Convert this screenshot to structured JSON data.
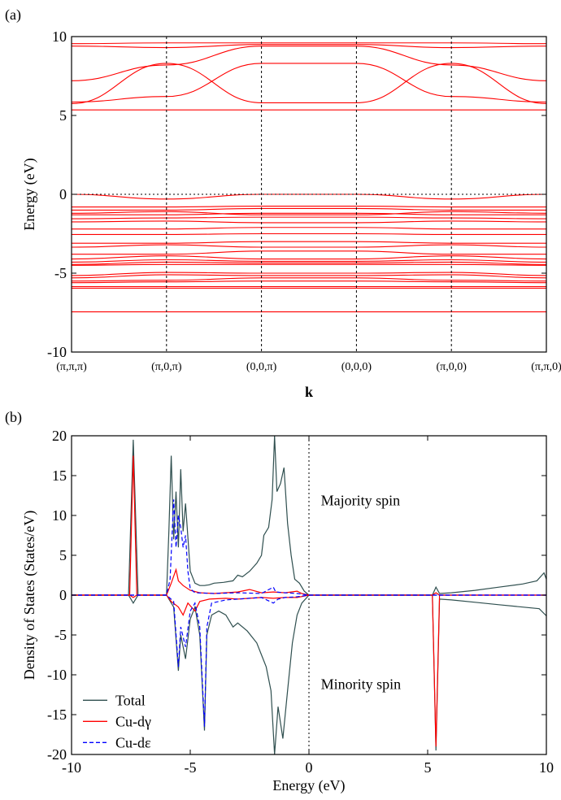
{
  "chart_data": [
    {
      "panel_label": "(a)",
      "type": "line",
      "xlabel": "k",
      "ylabel": "Energy (eV)",
      "ylim": [
        -10,
        10
      ],
      "yticks": [
        -10,
        -5,
        0,
        5,
        10
      ],
      "k_points": [
        "(π,π,π)",
        "(π,0,π)",
        "(0,0,π)",
        "(0,0,0)",
        "(π,0,0)",
        "(π,π,0)"
      ],
      "fermi_level": 0,
      "band_color": "#ff0000",
      "bands": [
        {
          "values": [
            -7.45,
            -7.45,
            -7.45,
            -7.45,
            -7.45,
            -7.45
          ]
        },
        {
          "values": [
            -5.95,
            -5.95,
            -5.95,
            -5.95,
            -5.95,
            -5.95
          ]
        },
        {
          "values": [
            -5.85,
            -5.85,
            -5.85,
            -5.85,
            -5.85,
            -5.85
          ]
        },
        {
          "values": [
            -5.6,
            -5.55,
            -5.5,
            -5.5,
            -5.55,
            -5.6
          ]
        },
        {
          "values": [
            -5.5,
            -5.45,
            -5.3,
            -5.3,
            -5.45,
            -5.5
          ]
        },
        {
          "values": [
            -5.3,
            -5.1,
            -5.15,
            -5.15,
            -5.1,
            -5.3
          ]
        },
        {
          "values": [
            -5.15,
            -4.95,
            -5.0,
            -5.0,
            -4.95,
            -5.15
          ]
        },
        {
          "values": [
            -4.5,
            -4.45,
            -4.45,
            -4.45,
            -4.45,
            -4.5
          ]
        },
        {
          "values": [
            -4.45,
            -4.3,
            -4.35,
            -4.35,
            -4.3,
            -4.45
          ]
        },
        {
          "values": [
            -4.3,
            -4.15,
            -4.25,
            -4.25,
            -4.15,
            -4.3
          ]
        },
        {
          "values": [
            -4.1,
            -3.9,
            -4.1,
            -4.1,
            -3.9,
            -4.1
          ]
        },
        {
          "values": [
            -3.8,
            -3.8,
            -3.6,
            -3.6,
            -3.8,
            -3.8
          ]
        },
        {
          "values": [
            -3.35,
            -3.2,
            -3.35,
            -3.35,
            -3.2,
            -3.35
          ]
        },
        {
          "values": [
            -3.1,
            -3.1,
            -3.0,
            -3.0,
            -3.1,
            -3.1
          ]
        },
        {
          "values": [
            -2.55,
            -2.55,
            -2.5,
            -2.5,
            -2.55,
            -2.55
          ]
        },
        {
          "values": [
            -2.2,
            -2.2,
            -2.1,
            -2.1,
            -2.2,
            -2.2
          ]
        },
        {
          "values": [
            -1.75,
            -1.7,
            -1.8,
            -1.8,
            -1.7,
            -1.75
          ]
        },
        {
          "values": [
            -1.55,
            -1.5,
            -1.45,
            -1.45,
            -1.5,
            -1.55
          ]
        },
        {
          "values": [
            -1.3,
            -1.3,
            -1.2,
            -1.2,
            -1.3,
            -1.3
          ]
        },
        {
          "values": [
            -1.2,
            -1.1,
            -1.3,
            -1.3,
            -1.1,
            -1.2
          ]
        },
        {
          "values": [
            -1.0,
            -1.0,
            -0.9,
            -0.9,
            -1.0,
            -1.0
          ]
        },
        {
          "values": [
            -0.8,
            -0.8,
            -0.75,
            -0.75,
            -0.8,
            -0.8
          ]
        },
        {
          "values": [
            0.0,
            -0.3,
            0.0,
            0.0,
            -0.3,
            0.0
          ]
        },
        {
          "values": [
            5.35,
            5.35,
            5.35,
            5.35,
            5.35,
            5.35
          ]
        },
        {
          "values": [
            5.75,
            8.3,
            5.8,
            5.8,
            8.3,
            5.75
          ]
        },
        {
          "values": [
            5.85,
            6.2,
            8.3,
            8.3,
            6.2,
            5.85
          ]
        },
        {
          "values": [
            7.2,
            8.2,
            9.4,
            9.4,
            8.2,
            7.2
          ]
        },
        {
          "values": [
            9.4,
            9.3,
            9.5,
            9.5,
            9.3,
            9.4
          ]
        },
        {
          "values": [
            9.55,
            9.6,
            9.6,
            9.6,
            9.6,
            9.55
          ]
        }
      ]
    },
    {
      "panel_label": "(b)",
      "type": "line",
      "xlabel": "Energy (eV)",
      "ylabel": "Density of States (States/eV)",
      "xlim": [
        -10,
        10
      ],
      "ylim": [
        -20,
        20
      ],
      "xticks": [
        -10,
        -5,
        0,
        5,
        10
      ],
      "yticks": [
        -20,
        -15,
        -10,
        -5,
        0,
        5,
        10,
        15,
        20
      ],
      "annotations": [
        "Majority spin",
        "Minority spin"
      ],
      "legend_position": "bottom-left",
      "series": [
        {
          "name": "Total",
          "color": "#2f4f4f",
          "dash": "solid",
          "majority": [
            [
              -10,
              0
            ],
            [
              -7.6,
              0
            ],
            [
              -7.4,
              19.5
            ],
            [
              -7.2,
              0
            ],
            [
              -6.0,
              0
            ],
            [
              -5.9,
              8
            ],
            [
              -5.8,
              17.5
            ],
            [
              -5.7,
              7
            ],
            [
              -5.6,
              13
            ],
            [
              -5.5,
              6
            ],
            [
              -5.4,
              15.8
            ],
            [
              -5.3,
              8
            ],
            [
              -5.2,
              11.5
            ],
            [
              -5.0,
              3
            ],
            [
              -4.8,
              1.5
            ],
            [
              -4.6,
              1.2
            ],
            [
              -4.4,
              1.2
            ],
            [
              -4.2,
              1.3
            ],
            [
              -4.0,
              1.5
            ],
            [
              -3.6,
              1.6
            ],
            [
              -3.2,
              1.8
            ],
            [
              -3.0,
              2.5
            ],
            [
              -2.8,
              2.3
            ],
            [
              -2.5,
              3.0
            ],
            [
              -2.2,
              4.0
            ],
            [
              -2.0,
              5.0
            ],
            [
              -1.9,
              7.5
            ],
            [
              -1.7,
              8.5
            ],
            [
              -1.55,
              12
            ],
            [
              -1.45,
              20
            ],
            [
              -1.35,
              13
            ],
            [
              -1.2,
              14
            ],
            [
              -1.05,
              16
            ],
            [
              -0.9,
              9
            ],
            [
              -0.75,
              5
            ],
            [
              -0.6,
              2
            ],
            [
              -0.4,
              1.5
            ],
            [
              -0.2,
              0.5
            ],
            [
              0,
              0
            ],
            [
              5.2,
              0
            ],
            [
              5.35,
              1.0
            ],
            [
              5.5,
              0.2
            ],
            [
              6,
              0.3
            ],
            [
              7,
              0.6
            ],
            [
              8,
              1.0
            ],
            [
              9,
              1.4
            ],
            [
              9.6,
              1.8
            ],
            [
              9.9,
              2.8
            ],
            [
              10,
              2.0
            ]
          ],
          "minority": [
            [
              -10,
              0
            ],
            [
              -7.6,
              0
            ],
            [
              -7.4,
              -1.0
            ],
            [
              -7.2,
              0
            ],
            [
              -6.0,
              0
            ],
            [
              -5.7,
              -1.5
            ],
            [
              -5.5,
              -9.5
            ],
            [
              -5.4,
              -5
            ],
            [
              -5.2,
              -8
            ],
            [
              -5.0,
              -3
            ],
            [
              -4.8,
              -1.5
            ],
            [
              -4.6,
              -5
            ],
            [
              -4.4,
              -17
            ],
            [
              -4.3,
              -5
            ],
            [
              -4.1,
              -2.5
            ],
            [
              -3.8,
              -2.0
            ],
            [
              -3.5,
              -2.5
            ],
            [
              -3.2,
              -4.0
            ],
            [
              -3.0,
              -3.5
            ],
            [
              -2.6,
              -4.5
            ],
            [
              -2.2,
              -6.0
            ],
            [
              -2.0,
              -7.5
            ],
            [
              -1.8,
              -9
            ],
            [
              -1.6,
              -12
            ],
            [
              -1.45,
              -20
            ],
            [
              -1.3,
              -14
            ],
            [
              -1.1,
              -18
            ],
            [
              -0.9,
              -12
            ],
            [
              -0.7,
              -6
            ],
            [
              -0.5,
              -2.5
            ],
            [
              -0.3,
              -1.0
            ],
            [
              0,
              0
            ],
            [
              5.2,
              0
            ],
            [
              5.35,
              -19.5
            ],
            [
              5.5,
              -0.5
            ],
            [
              6,
              -0.6
            ],
            [
              7,
              -0.9
            ],
            [
              8,
              -1.2
            ],
            [
              9,
              -1.5
            ],
            [
              9.7,
              -1.7
            ],
            [
              10,
              -2.6
            ]
          ]
        },
        {
          "name": "Cu-dγ",
          "color": "#ff0000",
          "dash": "solid",
          "majority": [
            [
              -10,
              0
            ],
            [
              -7.55,
              0
            ],
            [
              -7.4,
              17.5
            ],
            [
              -7.25,
              0
            ],
            [
              -6.0,
              0
            ],
            [
              -5.8,
              1.5
            ],
            [
              -5.6,
              3.2
            ],
            [
              -5.5,
              1.8
            ],
            [
              -5.3,
              1.2
            ],
            [
              -5.0,
              0.6
            ],
            [
              -4.6,
              0.3
            ],
            [
              -4.0,
              0.2
            ],
            [
              -3.0,
              0.4
            ],
            [
              -2.5,
              0.7
            ],
            [
              -2.0,
              0.3
            ],
            [
              -1.5,
              0.4
            ],
            [
              -1.0,
              0.3
            ],
            [
              -0.5,
              0.5
            ],
            [
              -0.3,
              0.2
            ],
            [
              0,
              0
            ],
            [
              5.2,
              0
            ],
            [
              5.35,
              0.3
            ],
            [
              5.5,
              0
            ],
            [
              10,
              0
            ]
          ],
          "minority": [
            [
              -10,
              0
            ],
            [
              -7.55,
              0
            ],
            [
              -7.4,
              -0.3
            ],
            [
              -7.25,
              0
            ],
            [
              -6.0,
              0
            ],
            [
              -5.8,
              -0.8
            ],
            [
              -5.5,
              -1.5
            ],
            [
              -5.3,
              -2.5
            ],
            [
              -5.1,
              -1.0
            ],
            [
              -4.8,
              -2.0
            ],
            [
              -4.6,
              -0.8
            ],
            [
              -4.2,
              -0.5
            ],
            [
              -3.5,
              -0.4
            ],
            [
              -3.0,
              -0.5
            ],
            [
              -2.0,
              -0.3
            ],
            [
              -1.5,
              -0.4
            ],
            [
              -1.0,
              -0.3
            ],
            [
              -0.5,
              -0.3
            ],
            [
              0,
              0
            ],
            [
              5.2,
              0
            ],
            [
              5.35,
              -19
            ],
            [
              5.5,
              0
            ],
            [
              10,
              0
            ]
          ]
        },
        {
          "name": "Cu-dε",
          "color": "#0000ff",
          "dash": "dashed",
          "majority": [
            [
              -10,
              0
            ],
            [
              -6.0,
              0
            ],
            [
              -5.85,
              2
            ],
            [
              -5.7,
              12
            ],
            [
              -5.6,
              6
            ],
            [
              -5.5,
              10
            ],
            [
              -5.4,
              8.5
            ],
            [
              -5.3,
              6
            ],
            [
              -5.2,
              7.5
            ],
            [
              -5.1,
              3
            ],
            [
              -5.0,
              0.8
            ],
            [
              -4.8,
              0.3
            ],
            [
              -4.0,
              0.2
            ],
            [
              -3.0,
              0.3
            ],
            [
              -2.0,
              0.2
            ],
            [
              -1.5,
              1.0
            ],
            [
              -1.4,
              0.4
            ],
            [
              -1.0,
              0.3
            ],
            [
              -0.5,
              0.2
            ],
            [
              0,
              0
            ],
            [
              10,
              0
            ]
          ],
          "minority": [
            [
              -10,
              0
            ],
            [
              -6.0,
              0
            ],
            [
              -5.7,
              -0.8
            ],
            [
              -5.5,
              -9
            ],
            [
              -5.4,
              -4
            ],
            [
              -5.2,
              -6.5
            ],
            [
              -5.0,
              -2
            ],
            [
              -4.8,
              -1.0
            ],
            [
              -4.6,
              -4
            ],
            [
              -4.4,
              -16.5
            ],
            [
              -4.3,
              -4
            ],
            [
              -4.1,
              -1.0
            ],
            [
              -3.5,
              -0.6
            ],
            [
              -3.0,
              -0.5
            ],
            [
              -2.0,
              -0.3
            ],
            [
              -1.5,
              -1.0
            ],
            [
              -1.3,
              -0.5
            ],
            [
              -1.0,
              -0.3
            ],
            [
              -0.5,
              -0.2
            ],
            [
              0,
              0
            ],
            [
              10,
              0
            ]
          ]
        }
      ]
    }
  ]
}
